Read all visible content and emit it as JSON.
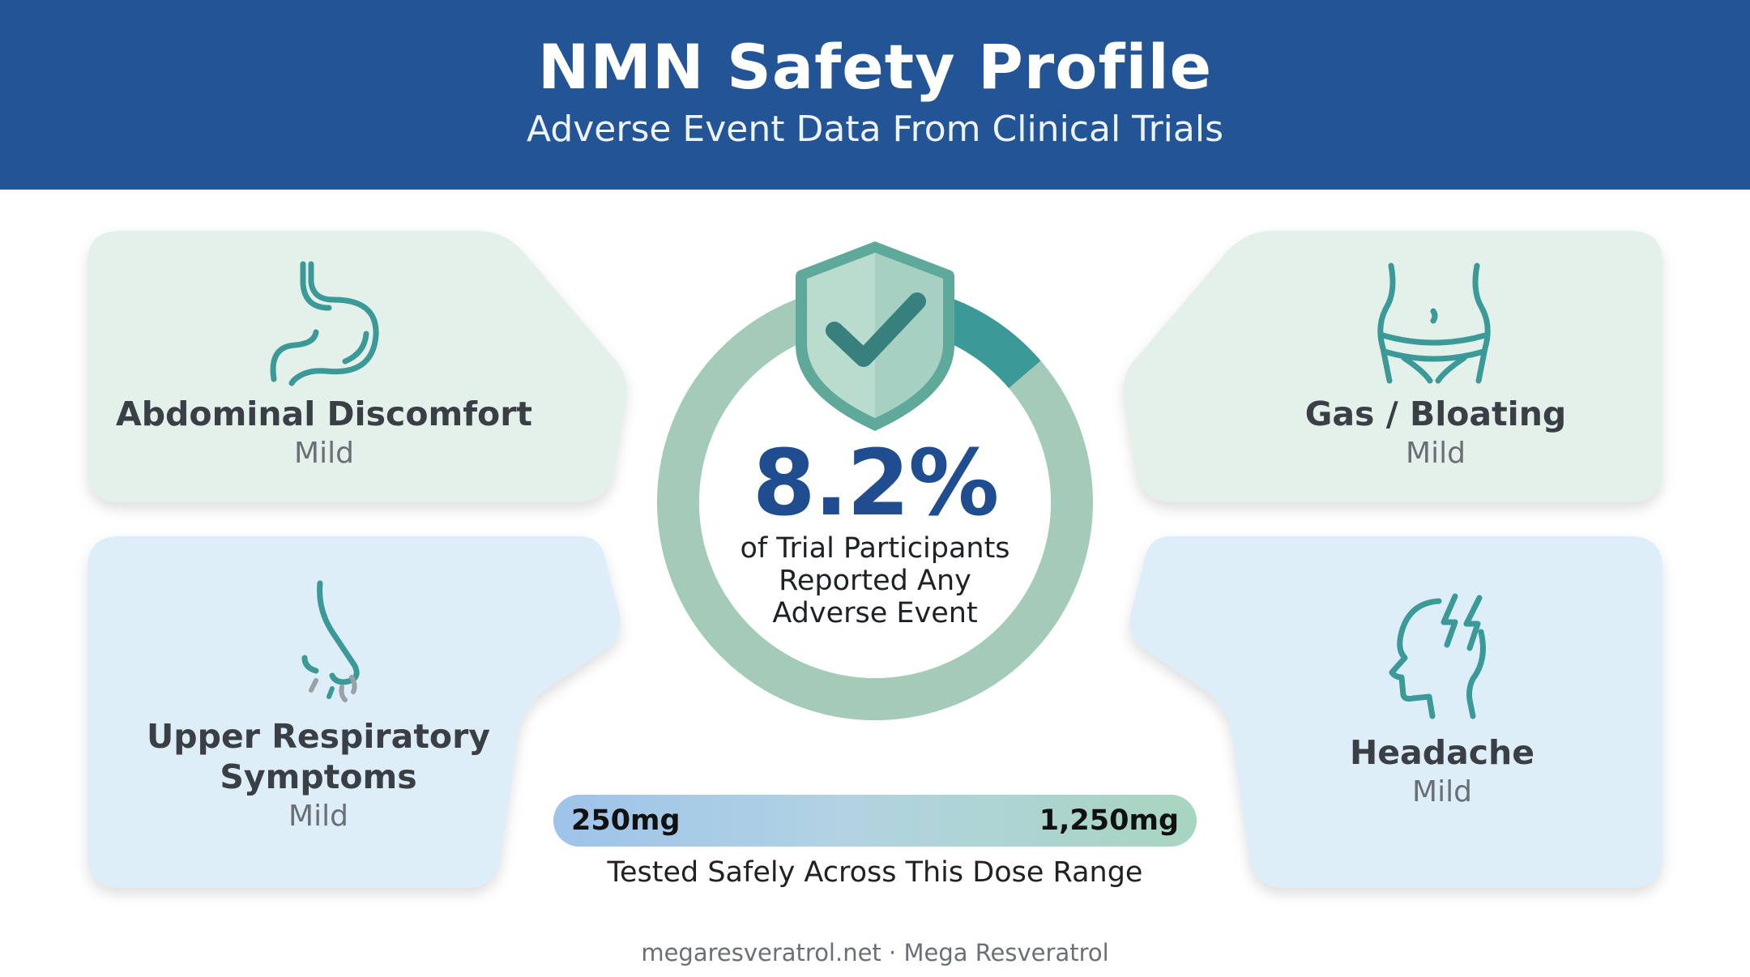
{
  "header": {
    "title": "NMN Safety Profile",
    "subtitle": "Adverse Event Data From Clinical Trials"
  },
  "center": {
    "percentage": "8.2%",
    "description_lines": [
      "of Trial Participants",
      "Reported Any",
      "Adverse Event"
    ],
    "ring_fill_fraction": 0.082,
    "icon": "shield-check-icon"
  },
  "cards": [
    {
      "title": "Abdominal Discomfort",
      "severity": "Mild",
      "icon": "stomach-icon",
      "color": "#e3f1ea"
    },
    {
      "title": "Gas / Bloating",
      "severity": "Mild",
      "icon": "abdomen-icon",
      "color": "#e3f1ea"
    },
    {
      "title_lines": [
        "Upper Respiratory",
        "Symptoms"
      ],
      "severity": "Mild",
      "icon": "nose-icon",
      "color": "#deeef8"
    },
    {
      "title": "Headache",
      "severity": "Mild",
      "icon": "head-lightning-icon",
      "color": "#deeef8"
    }
  ],
  "dose": {
    "min": "250mg",
    "max": "1,250mg",
    "caption": "Tested Safely Across This Dose Range"
  },
  "footer": "megaresveratrol.net · Mega Resveratrol",
  "colors": {
    "header": "#235596",
    "accent_teal": "#3b9a98",
    "ring": "#a3cbb8",
    "percentage": "#1f4d8f"
  }
}
